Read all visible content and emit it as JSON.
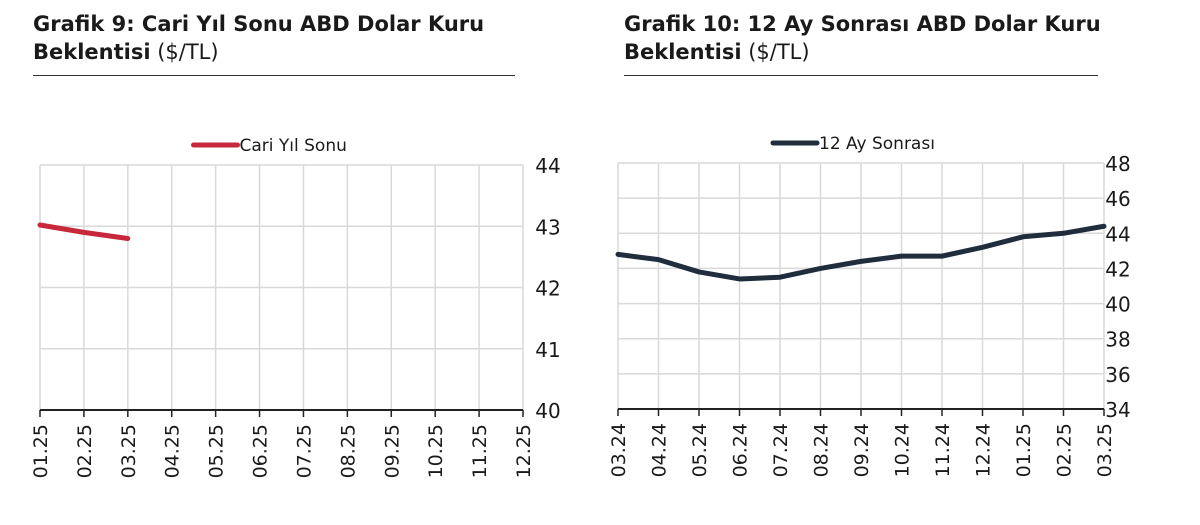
{
  "charts_header": [
    {
      "title_bold_1": "Grafik 9: Cari Yıl Sonu ABD Dolar Kuru",
      "title_bold_2": "Beklentisi",
      "unit": " ($/TL)"
    },
    {
      "title_bold_1": "Grafik 10: 12 Ay Sonrası ABD Dolar Kuru",
      "title_bold_2": "Beklentisi",
      "unit": " ($/TL)"
    }
  ],
  "chart_data": [
    {
      "type": "line",
      "title": "Grafik 9: Cari Yıl Sonu ABD Dolar Kuru Beklentisi ($/TL)",
      "categories": [
        "01.25",
        "02.25",
        "03.25",
        "04.25",
        "05.25",
        "06.25",
        "07.25",
        "08.25",
        "09.25",
        "10.25",
        "11.25",
        "12.25"
      ],
      "series": [
        {
          "name": "Cari Yıl Sonu",
          "color": "#c8283c",
          "values": [
            43.02,
            42.9,
            42.8,
            null,
            null,
            null,
            null,
            null,
            null,
            null,
            null,
            null
          ]
        }
      ],
      "ylim": [
        40,
        44
      ],
      "yticks": [
        40,
        41,
        42,
        43,
        44
      ],
      "yaxis_side": "right",
      "grid": true,
      "legend": "top-center"
    },
    {
      "type": "line",
      "title": "Grafik 10: 12 Ay Sonrası ABD Dolar Kuru Beklentisi ($/TL)",
      "categories": [
        "03.24",
        "04.24",
        "05.24",
        "06.24",
        "07.24",
        "08.24",
        "09.24",
        "10.24",
        "11.24",
        "12.24",
        "01.25",
        "02.25",
        "03.25"
      ],
      "series": [
        {
          "name": "12 Ay Sonrası",
          "color": "#1f2d3d",
          "values": [
            42.8,
            42.5,
            41.8,
            41.4,
            41.5,
            42.0,
            42.4,
            42.7,
            42.7,
            43.2,
            43.8,
            44.0,
            44.4
          ]
        }
      ],
      "ylim": [
        34,
        48
      ],
      "yticks": [
        34,
        36,
        38,
        40,
        42,
        44,
        46,
        48
      ],
      "yaxis_side": "right",
      "grid": true,
      "legend": "top-center"
    }
  ]
}
